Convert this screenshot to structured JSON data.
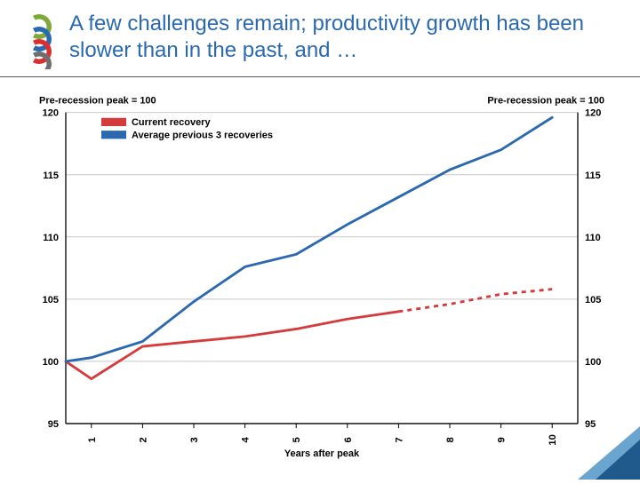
{
  "title": "A few challenges remain; productivity growth has been slower than in the past, and …",
  "logo": {
    "colors": [
      "#7fa83b",
      "#2a68b0",
      "#d92f2f",
      "#6e6e6e"
    ]
  },
  "chart": {
    "type": "line",
    "left_axis_title": "Pre-recession peak = 100",
    "right_axis_title": "Pre-recession peak = 100",
    "x_label": "Years after peak",
    "xlim": [
      0.5,
      10.5
    ],
    "ylim": [
      95,
      120
    ],
    "ytick_step": 5,
    "xticks": [
      1,
      2,
      3,
      4,
      5,
      6,
      7,
      8,
      9,
      10
    ],
    "background_color": "#ffffff",
    "grid_color": "#c9c9c9",
    "axis_color": "#000000",
    "legend": [
      {
        "label": "Current recovery",
        "color": "#d63b3b"
      },
      {
        "label": "Average previous 3 recoveries",
        "color": "#2a68b0"
      }
    ],
    "series": [
      {
        "name": "Current recovery",
        "color": "#d63b3b",
        "line_width": 2.8,
        "solid_points": [
          {
            "x": 0.5,
            "y": 100.0
          },
          {
            "x": 1.0,
            "y": 98.6
          },
          {
            "x": 2.0,
            "y": 101.2
          },
          {
            "x": 3.0,
            "y": 101.6
          },
          {
            "x": 4.0,
            "y": 102.0
          },
          {
            "x": 5.0,
            "y": 102.6
          },
          {
            "x": 6.0,
            "y": 103.4
          },
          {
            "x": 7.0,
            "y": 104.0
          }
        ],
        "dashed_points": [
          {
            "x": 7.0,
            "y": 104.0
          },
          {
            "x": 8.0,
            "y": 104.6
          },
          {
            "x": 9.0,
            "y": 105.4
          },
          {
            "x": 10.0,
            "y": 105.8
          }
        ]
      },
      {
        "name": "Average previous 3 recoveries",
        "color": "#2a68b0",
        "line_width": 2.8,
        "solid_points": [
          {
            "x": 0.5,
            "y": 100.0
          },
          {
            "x": 1.0,
            "y": 100.3
          },
          {
            "x": 2.0,
            "y": 101.6
          },
          {
            "x": 3.0,
            "y": 104.8
          },
          {
            "x": 4.0,
            "y": 107.6
          },
          {
            "x": 5.0,
            "y": 108.6
          },
          {
            "x": 6.0,
            "y": 111.0
          },
          {
            "x": 7.0,
            "y": 113.2
          },
          {
            "x": 8.0,
            "y": 115.4
          },
          {
            "x": 9.0,
            "y": 117.0
          },
          {
            "x": 10.0,
            "y": 119.6
          }
        ]
      }
    ]
  },
  "corner_accent": {
    "primary": "#205a8c",
    "secondary": "#6aa4cf"
  }
}
